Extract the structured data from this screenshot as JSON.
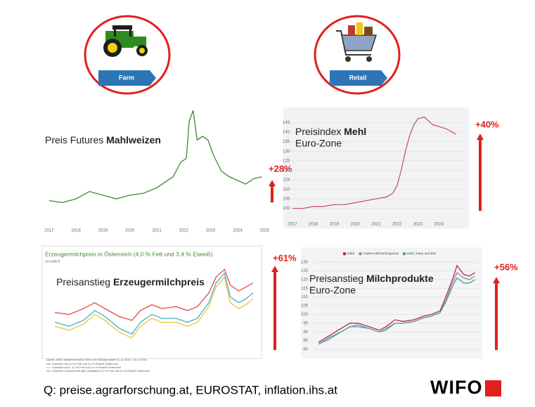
{
  "buttons": [
    "Farm",
    "Retail"
  ],
  "chart_data": [
    {
      "type": "line",
      "title": "Preis Futures",
      "title_bold": "Mahlweizen",
      "annotation": "+28%",
      "x": [
        2017,
        2017.5,
        2018,
        2018.5,
        2019,
        2019.5,
        2020,
        2020.5,
        2021,
        2021.3,
        2021.6,
        2021.9,
        2022.1,
        2022.2,
        2022.35,
        2022.5,
        2022.7,
        2022.9,
        2023.1,
        2023.4,
        2023.7,
        2024,
        2024.3,
        2024.6,
        2024.9
      ],
      "series": [
        {
          "name": "Mahlweizen",
          "color": "#3a8a2e",
          "values": [
            165,
            160,
            170,
            190,
            180,
            170,
            180,
            185,
            200,
            215,
            230,
            270,
            280,
            380,
            410,
            330,
            340,
            330,
            290,
            245,
            230,
            220,
            210,
            225,
            230
          ]
        }
      ],
      "xlim": [
        2016.9,
        2025.1
      ],
      "ylim": [
        80,
        420
      ],
      "xticks": [
        2017,
        2018,
        2019,
        2020,
        2021,
        2022,
        2023,
        2024,
        2025
      ]
    },
    {
      "type": "line",
      "title": "Preisindex",
      "title_bold": "Mehl",
      "subtitle": "Euro-Zone",
      "annotation": "+40%",
      "x": [
        2017,
        2017.5,
        2018,
        2018.5,
        2019,
        2019.5,
        2020,
        2020.5,
        2021,
        2021.5,
        2021.8,
        2022.0,
        2022.2,
        2022.4,
        2022.6,
        2022.8,
        2023.0,
        2023.3,
        2023.5,
        2023.7,
        2024.0,
        2024.3,
        2024.5,
        2024.8
      ],
      "series": [
        {
          "name": "Mehl",
          "color": "#c4587a",
          "values": [
            100,
            100,
            101,
            101,
            102,
            102,
            103,
            104,
            105,
            106,
            108,
            112,
            120,
            130,
            138,
            144,
            147,
            148,
            146,
            144,
            143,
            142,
            141,
            139
          ]
        }
      ],
      "xlim": [
        2016.8,
        2025.2
      ],
      "ylim": [
        95,
        150
      ],
      "yticks": [
        100,
        105,
        110,
        115,
        120,
        125,
        130,
        135,
        140,
        145
      ],
      "xticks": [
        2017,
        2018,
        2019,
        2020,
        2021,
        2022,
        2023,
        2024
      ]
    },
    {
      "type": "line",
      "title": "Preisanstieg",
      "title_bold": "Erzeugermilchpreis",
      "header": "Erzeugermilchpreis in Österreich (4,0 % Fett und 3,4 % Eiweiß)",
      "header_note": "monatlich",
      "annotation": "+61%",
      "source": "Quelle: AMA, Marktinformation Milch und Milchprodukte 01.12.2010 - 01.12.2024",
      "x": [
        2011,
        2012,
        2013,
        2013.8,
        2014.5,
        2015.5,
        2016.4,
        2017,
        2017.8,
        2018.5,
        2019.5,
        2020.3,
        2021,
        2021.8,
        2022.3,
        2022.9,
        2023.3,
        2023.9,
        2024.4,
        2024.9
      ],
      "series": [
        {
          "name": "Kuhmilch bio 4,0 % Fett und 3,4 % Eiweiß Österreich",
          "color": "#e8474c",
          "values": [
            42,
            41,
            44,
            47,
            44,
            40,
            38,
            43,
            46,
            44,
            45,
            43,
            45,
            52,
            60,
            64,
            56,
            53,
            55,
            57
          ]
        },
        {
          "name": "Kuhmilch konv. 4,0 % Fett und 3,4 % Eiweiß Österreich",
          "color": "#f2c230",
          "values": [
            35,
            33,
            36,
            41,
            38,
            32,
            29,
            35,
            39,
            37,
            37,
            35,
            37,
            45,
            55,
            60,
            47,
            44,
            46,
            49
          ]
        },
        {
          "name": "Kuhmilch Durchschnitt aller Qualitäten 4,0 % Fett und 3,4 % Eiweiß Österreich",
          "color": "#3fb3c8",
          "values": [
            37,
            35,
            38,
            43,
            40,
            34,
            31,
            37,
            41,
            39,
            39,
            37,
            39,
            47,
            57,
            62,
            50,
            47,
            49,
            52
          ]
        }
      ],
      "xlim": [
        2010.5,
        2025.3
      ],
      "ylim": [
        25,
        68
      ]
    },
    {
      "type": "line",
      "title": "Preisanstieg",
      "title_bold": "Milchprodukte",
      "subtitle": "Euro-Zone",
      "annotation": "+56%",
      "x": [
        2011,
        2012,
        2013,
        2013.8,
        2014.5,
        2015.5,
        2016.4,
        2017,
        2017.8,
        2018.5,
        2019.5,
        2020.3,
        2021,
        2021.8,
        2022.3,
        2022.9,
        2023.3,
        2023.9,
        2024.4,
        2024.9
      ],
      "series": [
        {
          "name": "Milch",
          "color": "#b8264a",
          "values": [
            84,
            88,
            92,
            95,
            95,
            93,
            91,
            93,
            97,
            96,
            97,
            99,
            100,
            102,
            110,
            120,
            128,
            123,
            122,
            124
          ]
        },
        {
          "name": "Andere Milcherzeugnisse",
          "color": "#8e8aa8",
          "values": [
            83,
            87,
            90,
            93,
            93,
            92,
            90,
            92,
            95,
            95,
            96,
            98,
            99,
            101,
            108,
            118,
            124,
            121,
            120,
            122
          ]
        },
        {
          "name": "Milch, Käse und Eier",
          "color": "#4aa3a8",
          "values": [
            83,
            86,
            90,
            93,
            94,
            92,
            90,
            91,
            95,
            95,
            96,
            98,
            99,
            101,
            107,
            116,
            121,
            118,
            118,
            120
          ]
        }
      ],
      "xlim": [
        2010.5,
        2025.3
      ],
      "ylim": [
        78,
        132
      ],
      "yticks": [
        80,
        85,
        90,
        95,
        100,
        105,
        110,
        115,
        120,
        125,
        130
      ]
    }
  ],
  "footer": {
    "source": "Q: preise.agrarforschung.at, EUROSTAT, inflation.ihs.at",
    "logo": "WIFO"
  }
}
